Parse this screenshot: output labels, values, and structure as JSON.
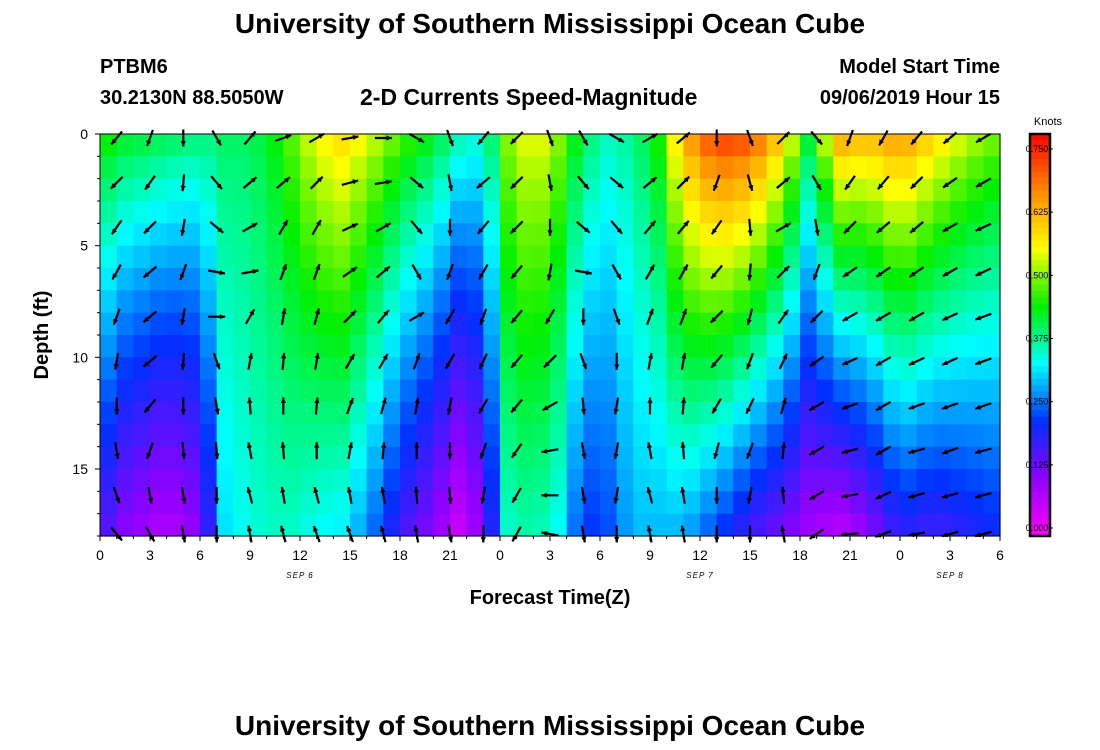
{
  "page": {
    "title_top": "University of Southern Mississippi Ocean Cube",
    "title_bottom": "University of Southern Mississippi Ocean Cube",
    "station_id": "PTBM6",
    "station_coords": "30.2130N 88.5050W",
    "subtitle": "2-D Currents Speed-Magnitude",
    "start_label": "Model Start Time",
    "start_value": "09/06/2019 Hour 15"
  },
  "colors": {
    "scale": [
      "#ff00ff",
      "#9000ff",
      "#0030ff",
      "#00ffff",
      "#00f000",
      "#ffff00",
      "#ff8a00",
      "#ff0000"
    ],
    "arrow": "#000000",
    "background": "#ffffff"
  },
  "chart_data": {
    "type": "heatmap",
    "title": "2-D Currents Speed-Magnitude",
    "xlabel": "Forecast Time(Z)",
    "ylabel": "Depth (ft)",
    "colorbar_label": "Knots",
    "x_range_hours": [
      0,
      54
    ],
    "y_range_ft": [
      0,
      18
    ],
    "y_ticks": [
      0,
      5,
      10,
      15
    ],
    "x_ticks": [
      "0",
      "3",
      "6",
      "9",
      "12",
      "15",
      "18",
      "21",
      "0",
      "3",
      "6",
      "9",
      "12",
      "15",
      "18",
      "21",
      "0",
      "3",
      "6"
    ],
    "date_labels": [
      {
        "text": "SEP 6",
        "hour": 12
      },
      {
        "text": "SEP 7",
        "hour": 36
      },
      {
        "text": "SEP 8",
        "hour": 51
      }
    ],
    "colorbar_range": [
      0,
      0.78
    ],
    "colorbar_ticks": [
      "0.750",
      "0.625",
      "0.500",
      "0.375",
      "0.250",
      "0.125",
      "0.000"
    ],
    "colorbar_tick_values": [
      0.75,
      0.625,
      0.5,
      0.375,
      0.25,
      0.125,
      0.0
    ],
    "depths_ft": [
      0,
      1,
      2,
      3,
      4,
      5,
      6,
      7,
      8,
      9,
      10,
      11,
      12,
      13,
      14,
      15,
      16,
      17
    ],
    "hours": [
      0,
      1,
      2,
      3,
      4,
      5,
      6,
      7,
      8,
      9,
      10,
      11,
      12,
      13,
      14,
      15,
      16,
      17,
      18,
      19,
      20,
      21,
      22,
      23,
      24,
      25,
      26,
      27,
      28,
      29,
      30,
      31,
      32,
      33,
      34,
      35,
      36,
      37,
      38,
      39,
      40,
      41,
      42,
      43,
      44,
      45,
      46,
      47,
      48,
      49,
      50,
      51,
      52,
      53
    ],
    "speed_profiles_knots": [
      {
        "hour": 0,
        "surface": 0.45,
        "bottom": 0.18
      },
      {
        "hour": 1.5,
        "surface": 0.42,
        "bottom": 0.12
      },
      {
        "hour": 4,
        "surface": 0.4,
        "bottom": 0.08
      },
      {
        "hour": 6,
        "surface": 0.38,
        "bottom": 0.12
      },
      {
        "hour": 7.5,
        "surface": 0.4,
        "bottom": 0.32
      },
      {
        "hour": 8.5,
        "surface": 0.4,
        "bottom": 0.34
      },
      {
        "hour": 10,
        "surface": 0.42,
        "bottom": 0.36
      },
      {
        "hour": 11.5,
        "surface": 0.48,
        "bottom": 0.36
      },
      {
        "hour": 13,
        "surface": 0.55,
        "bottom": 0.34
      },
      {
        "hour": 14.5,
        "surface": 0.58,
        "bottom": 0.33
      },
      {
        "hour": 16,
        "surface": 0.54,
        "bottom": 0.28
      },
      {
        "hour": 18,
        "surface": 0.47,
        "bottom": 0.18
      },
      {
        "hour": 20,
        "surface": 0.42,
        "bottom": 0.12
      },
      {
        "hour": 21.5,
        "surface": 0.36,
        "bottom": 0.06
      },
      {
        "hour": 23,
        "surface": 0.34,
        "bottom": 0.12
      },
      {
        "hour": 24.5,
        "surface": 0.5,
        "bottom": 0.36
      },
      {
        "hour": 26,
        "surface": 0.56,
        "bottom": 0.38
      },
      {
        "hour": 27.5,
        "surface": 0.5,
        "bottom": 0.34
      },
      {
        "hour": 29,
        "surface": 0.4,
        "bottom": 0.22
      },
      {
        "hour": 30.5,
        "surface": 0.36,
        "bottom": 0.24
      },
      {
        "hour": 32,
        "surface": 0.38,
        "bottom": 0.3
      },
      {
        "hour": 33.5,
        "surface": 0.45,
        "bottom": 0.3
      },
      {
        "hour": 35,
        "surface": 0.62,
        "bottom": 0.3
      },
      {
        "hour": 37,
        "surface": 0.72,
        "bottom": 0.24
      },
      {
        "hour": 39,
        "surface": 0.7,
        "bottom": 0.18
      },
      {
        "hour": 41,
        "surface": 0.58,
        "bottom": 0.14
      },
      {
        "hour": 42.5,
        "surface": 0.42,
        "bottom": 0.1
      },
      {
        "hour": 44.5,
        "surface": 0.62,
        "bottom": 0.08
      },
      {
        "hour": 46,
        "surface": 0.6,
        "bottom": 0.12
      },
      {
        "hour": 48,
        "surface": 0.64,
        "bottom": 0.2
      },
      {
        "hour": 50,
        "surface": 0.58,
        "bottom": 0.18
      },
      {
        "hour": 52,
        "surface": 0.52,
        "bottom": 0.2
      },
      {
        "hour": 54,
        "surface": 0.48,
        "bottom": 0.22
      }
    ],
    "vector_columns_hours": [
      1,
      3,
      5,
      7,
      9,
      11,
      13,
      15,
      17,
      19,
      21,
      23,
      25,
      27,
      29,
      31,
      33,
      35,
      37,
      39,
      41,
      43,
      45,
      47,
      49,
      51,
      53
    ],
    "vector_depths_ft": [
      0,
      2,
      4,
      6,
      8,
      10,
      12,
      14,
      16,
      18
    ],
    "vector_direction_deg_by_column": [
      {
        "hour": 1,
        "degrees": [
          220,
          225,
          215,
          210,
          200,
          190,
          180,
          170,
          160,
          140
        ]
      },
      {
        "hour": 3,
        "degrees": [
          200,
          215,
          225,
          230,
          230,
          230,
          220,
          200,
          170,
          150
        ]
      },
      {
        "hour": 5,
        "degrees": [
          180,
          185,
          190,
          200,
          190,
          185,
          180,
          175,
          170,
          170
        ]
      },
      {
        "hour": 7,
        "degrees": [
          150,
          140,
          130,
          100,
          90,
          160,
          170,
          175,
          180,
          180
        ]
      },
      {
        "hour": 9,
        "degrees": [
          40,
          50,
          60,
          80,
          30,
          10,
          355,
          350,
          345,
          350
        ]
      },
      {
        "hour": 11,
        "degrees": [
          70,
          50,
          30,
          20,
          10,
          5,
          0,
          355,
          350,
          345
        ]
      },
      {
        "hour": 13,
        "degrees": [
          60,
          45,
          30,
          20,
          15,
          10,
          5,
          0,
          345,
          340
        ]
      },
      {
        "hour": 15,
        "degrees": [
          80,
          75,
          65,
          55,
          45,
          30,
          20,
          10,
          350,
          340
        ]
      },
      {
        "hour": 17,
        "degrees": [
          90,
          80,
          60,
          50,
          40,
          30,
          15,
          5,
          350,
          345
        ]
      },
      {
        "hour": 19,
        "degrees": [
          120,
          130,
          140,
          150,
          60,
          20,
          10,
          0,
          355,
          350
        ]
      },
      {
        "hour": 21,
        "degrees": [
          160,
          170,
          180,
          200,
          210,
          210,
          190,
          180,
          175,
          170
        ]
      },
      {
        "hour": 23,
        "degrees": [
          220,
          230,
          220,
          210,
          200,
          205,
          210,
          200,
          190,
          180
        ]
      },
      {
        "hour": 25,
        "degrees": [
          225,
          225,
          225,
          220,
          220,
          220,
          220,
          215,
          210,
          210
        ]
      },
      {
        "hour": 27,
        "degrees": [
          160,
          170,
          180,
          190,
          210,
          225,
          240,
          260,
          270,
          280
        ]
      },
      {
        "hour": 29,
        "degrees": [
          150,
          140,
          130,
          100,
          180,
          160,
          175,
          170,
          170,
          170
        ]
      },
      {
        "hour": 31,
        "degrees": [
          120,
          130,
          140,
          150,
          160,
          180,
          190,
          190,
          190,
          180
        ]
      },
      {
        "hour": 33,
        "degrees": [
          60,
          50,
          40,
          30,
          20,
          10,
          0,
          350,
          345,
          350
        ]
      },
      {
        "hour": 35,
        "degrees": [
          50,
          45,
          40,
          30,
          20,
          10,
          5,
          355,
          350,
          350
        ]
      },
      {
        "hour": 37,
        "degrees": [
          180,
          200,
          215,
          220,
          225,
          220,
          210,
          195,
          180,
          180
        ]
      },
      {
        "hour": 39,
        "degrees": [
          160,
          165,
          175,
          185,
          195,
          200,
          205,
          200,
          190,
          180
        ]
      },
      {
        "hour": 41,
        "degrees": [
          45,
          50,
          60,
          45,
          35,
          25,
          15,
          5,
          355,
          350
        ]
      },
      {
        "hour": 43,
        "degrees": [
          140,
          150,
          170,
          200,
          225,
          235,
          240,
          240,
          240,
          235
        ]
      },
      {
        "hour": 45,
        "degrees": [
          200,
          215,
          225,
          235,
          240,
          245,
          250,
          255,
          260,
          265
        ]
      },
      {
        "hour": 47,
        "degrees": [
          210,
          220,
          230,
          235,
          240,
          240,
          240,
          240,
          245,
          250
        ]
      },
      {
        "hour": 49,
        "degrees": [
          220,
          225,
          230,
          235,
          240,
          245,
          250,
          255,
          255,
          260
        ]
      },
      {
        "hour": 51,
        "degrees": [
          230,
          235,
          240,
          240,
          245,
          245,
          250,
          250,
          255,
          255
        ]
      },
      {
        "hour": 53,
        "degrees": [
          240,
          240,
          245,
          245,
          250,
          250,
          250,
          255,
          255,
          255
        ]
      }
    ]
  }
}
